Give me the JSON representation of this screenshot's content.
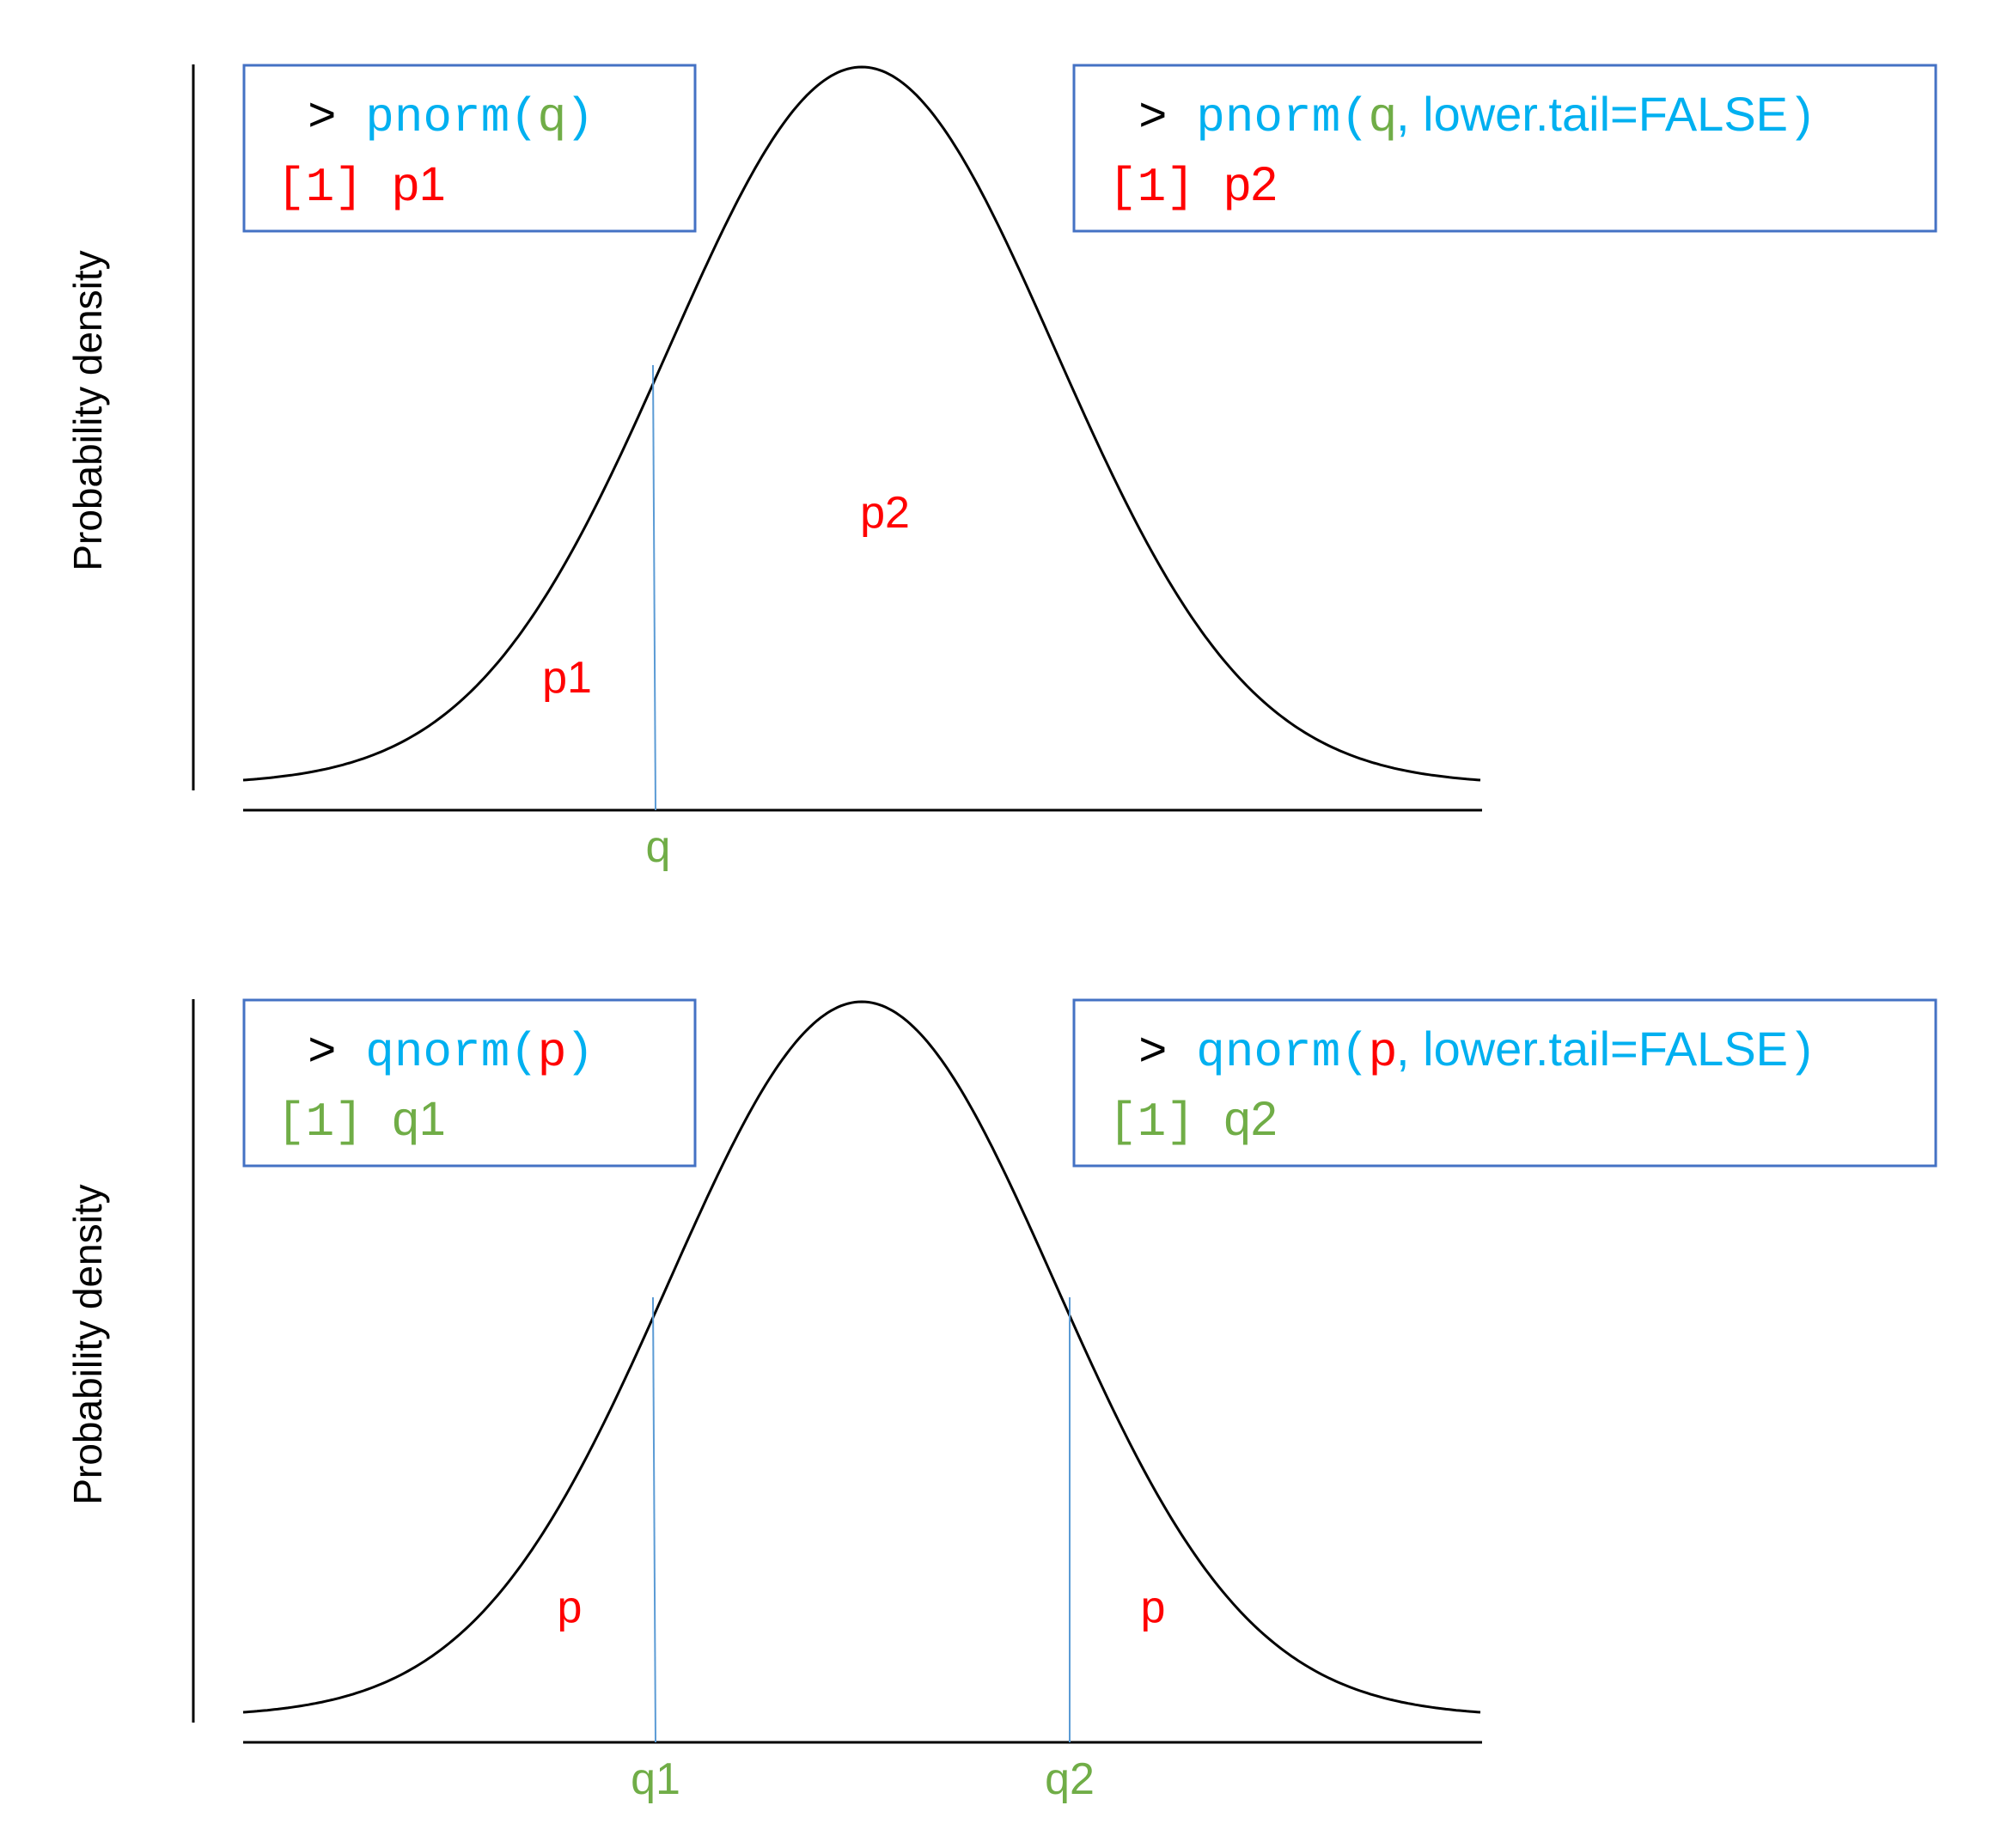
{
  "colors": {
    "red": "#ff0000",
    "green": "#70ad47",
    "cyan": "#00b0f0",
    "box_border": "#4472c4",
    "marker_line": "#5b9bd5",
    "ink": "#000000"
  },
  "panels": [
    {
      "ylabel": "Probability density",
      "left_box": {
        "prompt": ">",
        "func": "pnorm(",
        "arg": "q",
        "close": ")",
        "index": "[1]",
        "result": "p1",
        "result_color": "red"
      },
      "right_box": {
        "prompt": ">",
        "func": "pnorm(",
        "arg": "q",
        "opt": ", lower.tail=FALSE",
        "close": ")",
        "index": "[1]",
        "result": "p2",
        "result_color": "red"
      },
      "region_labels": [
        "p1",
        "p2"
      ],
      "axis_labels": [
        "q"
      ]
    },
    {
      "ylabel": "Probability density",
      "left_box": {
        "prompt": ">",
        "func": "qnorm(",
        "arg": "p",
        "close": ")",
        "index": "[1]",
        "result": "q1",
        "result_color": "green"
      },
      "right_box": {
        "prompt": ">",
        "func": "qnorm(",
        "arg": "p",
        "opt": ", lower.tail=FALSE",
        "close": ")",
        "index": "[1]",
        "result": "q2",
        "result_color": "green"
      },
      "region_labels": [
        "p",
        "p"
      ],
      "axis_labels": [
        "q1",
        "q2"
      ]
    }
  ]
}
